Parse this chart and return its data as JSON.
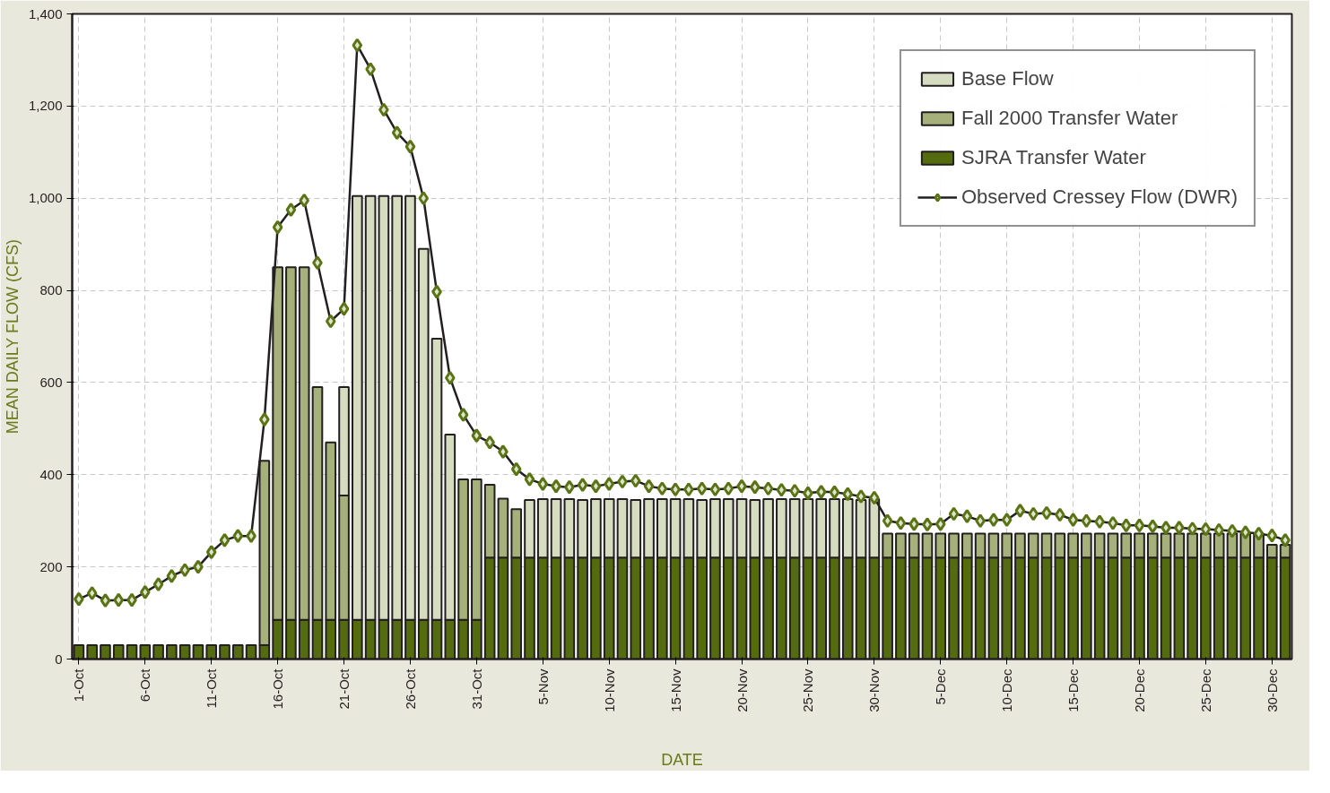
{
  "chart_data": {
    "type": "bar",
    "stacked": true,
    "xlabel": "DATE",
    "ylabel": "MEAN DAILY FLOW (CFS)",
    "categories": [
      "1-Oct",
      null,
      null,
      null,
      null,
      "6-Oct",
      null,
      null,
      null,
      null,
      "11-Oct",
      null,
      null,
      null,
      null,
      "16-Oct",
      null,
      null,
      null,
      null,
      "21-Oct",
      null,
      null,
      null,
      null,
      "26-Oct",
      null,
      null,
      null,
      null,
      "31-Oct",
      null,
      null,
      null,
      null,
      "5-Nov",
      null,
      null,
      null,
      null,
      "10-Nov",
      null,
      null,
      null,
      null,
      "15-Nov",
      null,
      null,
      null,
      null,
      "20-Nov",
      null,
      null,
      null,
      null,
      "25-Nov",
      null,
      null,
      null,
      null,
      "30-Nov",
      null,
      null,
      null,
      null,
      "5-Dec",
      null,
      null,
      null,
      null,
      "10-Dec",
      null,
      null,
      null,
      null,
      "15-Dec",
      null,
      null,
      null,
      null,
      "20-Dec",
      null,
      null,
      null,
      null,
      "25-Dec",
      null,
      null,
      null,
      null,
      "30-Dec",
      null
    ],
    "ylim": [
      0,
      1400
    ],
    "yticks": [
      0,
      {
        "value": 200,
        "label": "200"
      },
      {
        "value": 400,
        "label": "400"
      },
      {
        "value": 600,
        "label": "600"
      },
      {
        "value": 800,
        "label": "800"
      },
      {
        "value": 1000,
        "label": "1,000"
      },
      {
        "value": 1200,
        "label": "1,200"
      },
      {
        "value": 1400,
        "label": "1,400"
      }
    ],
    "grid": true,
    "legend": "top right",
    "marker": "diamond",
    "line_style": "solid",
    "series": [
      {
        "name": "SJRA Transfer Water",
        "color": "#556b0f",
        "values": [
          30,
          30,
          30,
          30,
          30,
          30,
          30,
          30,
          30,
          30,
          30,
          30,
          30,
          30,
          30,
          85,
          85,
          85,
          85,
          85,
          85,
          85,
          85,
          85,
          85,
          85,
          85,
          85,
          85,
          85,
          85,
          220,
          220,
          220,
          220,
          220,
          220,
          220,
          220,
          220,
          220,
          220,
          220,
          220,
          220,
          220,
          220,
          220,
          220,
          220,
          220,
          220,
          220,
          220,
          220,
          220,
          220,
          220,
          220,
          220,
          220,
          220,
          220,
          220,
          220,
          220,
          220,
          220,
          220,
          220,
          220,
          220,
          220,
          220,
          220,
          220,
          220,
          220,
          220,
          220,
          220,
          220,
          220,
          220,
          220,
          220,
          220,
          220,
          220,
          220,
          220,
          220
        ]
      },
      {
        "name": "Fall 2000 Transfer Water",
        "color": "#a5b07a",
        "values": [
          0,
          0,
          0,
          0,
          0,
          0,
          0,
          0,
          0,
          0,
          0,
          0,
          0,
          0,
          400,
          765,
          765,
          765,
          505,
          385,
          270,
          0,
          0,
          0,
          0,
          0,
          0,
          0,
          0,
          305,
          305,
          158,
          128,
          105,
          0,
          0,
          0,
          0,
          0,
          0,
          0,
          0,
          0,
          0,
          0,
          0,
          0,
          0,
          0,
          0,
          0,
          0,
          0,
          0,
          0,
          0,
          0,
          0,
          0,
          0,
          0,
          52,
          52,
          52,
          52,
          52,
          52,
          52,
          52,
          52,
          52,
          52,
          52,
          52,
          52,
          52,
          52,
          52,
          52,
          52,
          52,
          52,
          52,
          52,
          52,
          52,
          52,
          52,
          52,
          52,
          28,
          28
        ]
      },
      {
        "name": "Base Flow",
        "color": "#d6dcc0",
        "values": [
          0,
          0,
          0,
          0,
          0,
          0,
          0,
          0,
          0,
          0,
          0,
          0,
          0,
          0,
          0,
          0,
          0,
          0,
          0,
          0,
          235,
          920,
          920,
          920,
          920,
          920,
          805,
          610,
          402,
          0,
          0,
          0,
          0,
          0,
          125,
          127,
          127,
          127,
          125,
          127,
          127,
          127,
          125,
          127,
          127,
          127,
          127,
          125,
          127,
          127,
          127,
          125,
          127,
          127,
          127,
          127,
          127,
          127,
          127,
          125,
          127,
          0,
          0,
          0,
          0,
          0,
          0,
          0,
          0,
          0,
          0,
          0,
          0,
          0,
          0,
          0,
          0,
          0,
          0,
          0,
          0,
          0,
          0,
          0,
          0,
          0,
          0,
          0,
          0,
          0,
          0,
          0
        ]
      },
      {
        "name": "Observed Cressey Flow (DWR)",
        "type": "line",
        "color": "#5a7415",
        "values": [
          130,
          143,
          127,
          128,
          128,
          145,
          162,
          180,
          193,
          200,
          232,
          258,
          267,
          267,
          520,
          937,
          975,
          995,
          860,
          733,
          760,
          1332,
          1280,
          1192,
          1142,
          1112,
          1000,
          797,
          610,
          530,
          485,
          470,
          450,
          412,
          390,
          380,
          375,
          373,
          378,
          375,
          380,
          385,
          387,
          375,
          370,
          368,
          368,
          370,
          368,
          370,
          375,
          373,
          370,
          367,
          365,
          360,
          363,
          362,
          358,
          353,
          350,
          300,
          295,
          293,
          292,
          293,
          315,
          310,
          300,
          302,
          302,
          322,
          315,
          317,
          313,
          302,
          300,
          298,
          295,
          290,
          290,
          288,
          285,
          285,
          283,
          282,
          280,
          278,
          275,
          272,
          268,
          258
        ]
      }
    ]
  }
}
